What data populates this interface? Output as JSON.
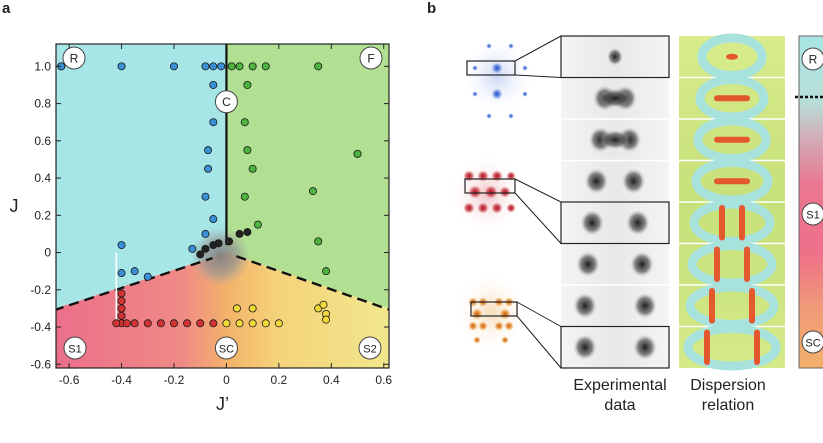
{
  "panel_a": {
    "letter": "a",
    "chart_data": {
      "type": "scatter",
      "xlabel": "J’",
      "ylabel": "J",
      "xlim": [
        -0.65,
        0.62
      ],
      "ylim": [
        -0.62,
        1.12
      ],
      "xticks": [
        "-0.6",
        "-0.4",
        "-0.2",
        "0",
        "0.2",
        "0.4",
        "0.6"
      ],
      "yticks": [
        "-0.6",
        "-0.4",
        "-0.2",
        "0",
        "0.2",
        "0.4",
        "0.6",
        "0.8",
        "1.0"
      ],
      "grid": false,
      "phase_labels": [
        "R",
        "F",
        "C",
        "S1",
        "SC",
        "S2"
      ],
      "phase_colors": {
        "R": "#a6e6e6",
        "F": "#b2e092",
        "S1": "#ec6f8a",
        "SC": "#f3b46a",
        "S2": "#f2e58a",
        "C": "#8d8d8d"
      },
      "series": [
        {
          "color": "#3a8fd6",
          "points": [
            [
              -0.63,
              1.0
            ],
            [
              -0.63,
              1.0
            ],
            [
              -0.4,
              1.0
            ],
            [
              -0.2,
              1.0
            ],
            [
              -0.08,
              1.0
            ],
            [
              -0.05,
              1.0
            ],
            [
              -0.02,
              1.0
            ],
            [
              -0.05,
              0.9
            ],
            [
              -0.05,
              0.7
            ],
            [
              -0.07,
              0.55
            ],
            [
              -0.07,
              0.45
            ],
            [
              -0.08,
              0.3
            ],
            [
              -0.05,
              0.18
            ],
            [
              -0.08,
              0.1
            ],
            [
              -0.13,
              0.02
            ],
            [
              -0.4,
              0.04
            ],
            [
              -0.4,
              -0.11
            ],
            [
              -0.35,
              -0.1
            ],
            [
              -0.3,
              -0.13
            ]
          ]
        },
        {
          "color": "#4eb33f",
          "points": [
            [
              0.02,
              1.0
            ],
            [
              0.05,
              1.0
            ],
            [
              0.1,
              1.0
            ],
            [
              0.15,
              1.0
            ],
            [
              0.35,
              1.0
            ],
            [
              0.08,
              0.9
            ],
            [
              0.07,
              0.7
            ],
            [
              0.08,
              0.55
            ],
            [
              0.1,
              0.45
            ],
            [
              0.07,
              0.3
            ],
            [
              0.12,
              0.15
            ],
            [
              0.33,
              0.33
            ],
            [
              0.5,
              0.53
            ],
            [
              0.35,
              0.06
            ],
            [
              0.38,
              -0.1
            ]
          ]
        },
        {
          "color": "#d23232",
          "points": [
            [
              -0.4,
              -0.22
            ],
            [
              -0.4,
              -0.26
            ],
            [
              -0.4,
              -0.3
            ],
            [
              -0.4,
              -0.34
            ],
            [
              -0.4,
              -0.38
            ],
            [
              -0.42,
              -0.38
            ],
            [
              -0.38,
              -0.38
            ],
            [
              -0.35,
              -0.38
            ],
            [
              -0.3,
              -0.38
            ],
            [
              -0.25,
              -0.38
            ],
            [
              -0.2,
              -0.38
            ],
            [
              -0.15,
              -0.38
            ],
            [
              -0.1,
              -0.38
            ],
            [
              -0.05,
              -0.38
            ]
          ]
        },
        {
          "color": "#f2d93a",
          "points": [
            [
              0.0,
              -0.38
            ],
            [
              0.05,
              -0.38
            ],
            [
              0.1,
              -0.38
            ],
            [
              0.15,
              -0.38
            ],
            [
              0.2,
              -0.38
            ],
            [
              0.04,
              -0.3
            ],
            [
              0.1,
              -0.3
            ],
            [
              0.35,
              -0.3
            ],
            [
              0.37,
              -0.28
            ],
            [
              0.38,
              -0.33
            ],
            [
              0.38,
              -0.36
            ]
          ]
        },
        {
          "color": "#222222",
          "points": [
            [
              -0.1,
              -0.01
            ],
            [
              -0.08,
              0.02
            ],
            [
              -0.05,
              0.04
            ],
            [
              -0.03,
              0.05
            ],
            [
              0.01,
              0.06
            ],
            [
              0.05,
              0.1
            ],
            [
              0.08,
              0.11
            ]
          ]
        }
      ]
    }
  },
  "panel_b": {
    "letter": "b",
    "captions": {
      "experimental_line1": "Experimental",
      "experimental_line2": "data",
      "dispersion_line1": "Dispersion",
      "dispersion_line2": "relation"
    },
    "colorbar_labels": [
      "R",
      "S1",
      "SC"
    ]
  }
}
